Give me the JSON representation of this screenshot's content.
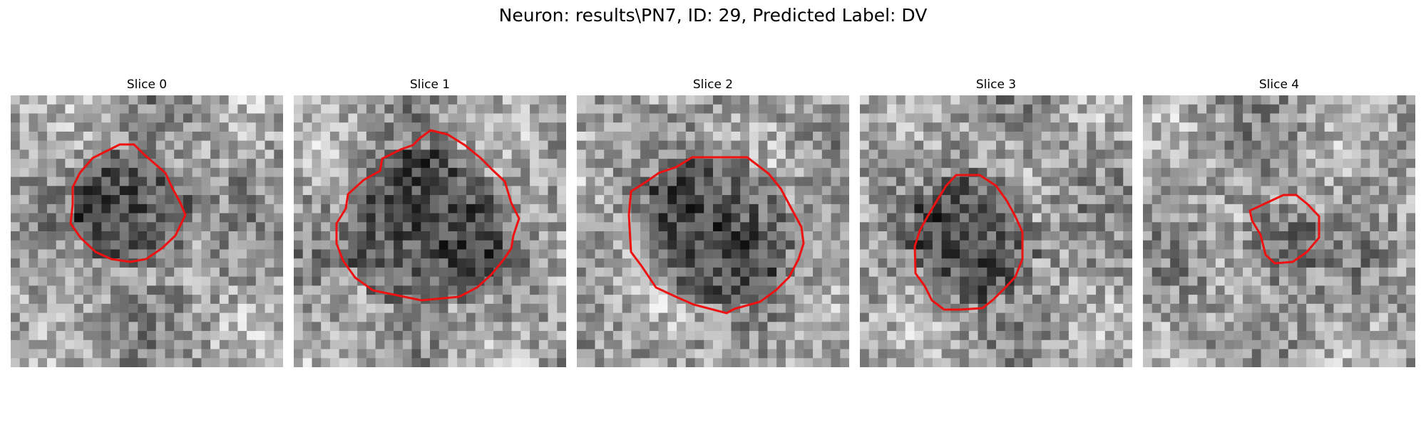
{
  "figure": {
    "title": "Neuron: results\\PN7, ID: 29, Predicted Label: DV"
  },
  "colors": {
    "background": "#ffffff",
    "contour": "#ee1111",
    "colormap": "grayscale"
  },
  "slices": [
    {
      "title": "Slice 0"
    },
    {
      "title": "Slice 1"
    },
    {
      "title": "Slice 2"
    },
    {
      "title": "Slice 3"
    },
    {
      "title": "Slice 4"
    }
  ]
}
